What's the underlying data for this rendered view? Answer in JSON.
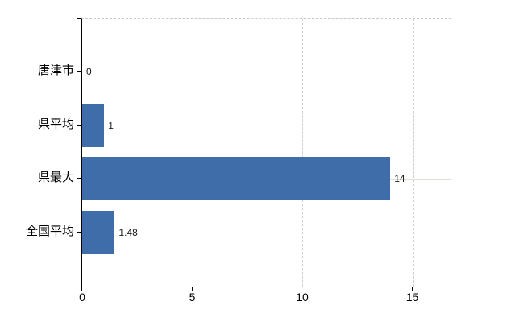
{
  "chart_data": {
    "type": "bar",
    "orientation": "horizontal",
    "title": "",
    "xlabel": "",
    "ylabel": "",
    "categories": [
      "唐津市",
      "県平均",
      "県最大",
      "全国平均"
    ],
    "values": [
      0,
      1,
      14,
      1.48
    ],
    "value_labels": [
      "0",
      "1",
      "14",
      "1.48"
    ],
    "x_ticks": [
      0,
      5,
      10,
      15
    ],
    "x_tick_labels": [
      "0",
      "5",
      "10",
      "15"
    ],
    "xlim": [
      0,
      16.8
    ],
    "legend": "none",
    "grid": {
      "horizontal": "solid lines at category centers",
      "vertical": "dashed lines at 5, 10, 15",
      "top_border": "dashed"
    },
    "colors": {
      "bar": "#3f6da9",
      "h_gridline": "#dbe2d5",
      "v_gridline": "#d3ced3",
      "top_border": "#ccc6cb",
      "axis": "#000000",
      "value_label_text": "#1a1a1a",
      "tick_label_text": "#000000",
      "background": "#ffffff"
    }
  }
}
